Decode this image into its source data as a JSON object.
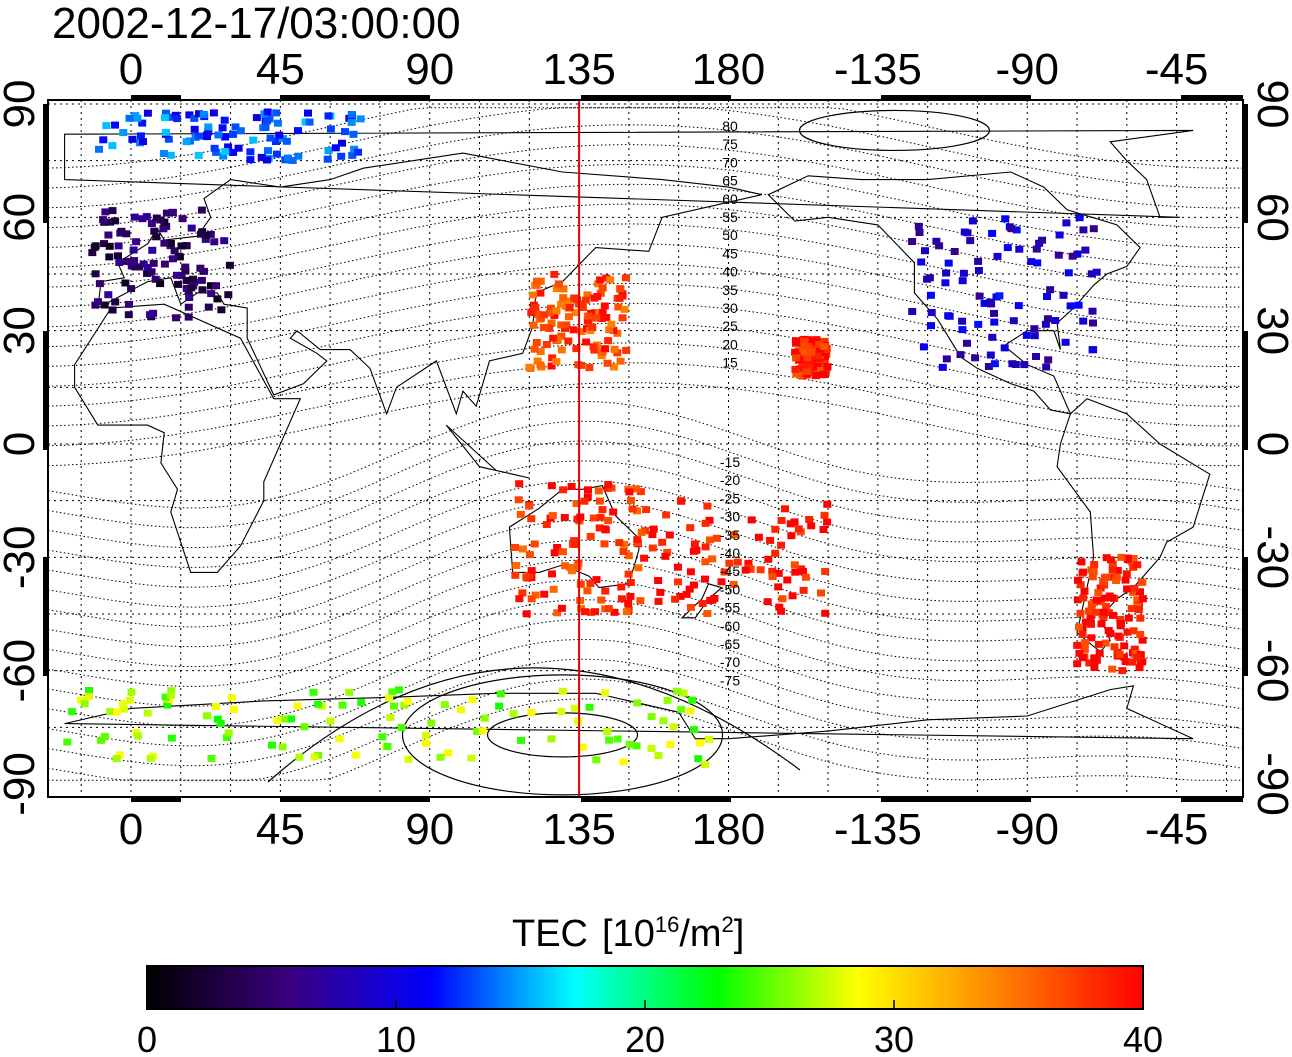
{
  "title": "2002-12-17/03:00:00",
  "map": {
    "lon_ticks": [
      "0",
      "45",
      "90",
      "135",
      "180",
      "-135",
      "-90",
      "-45"
    ],
    "lat_ticks_left": [
      "90",
      "60",
      "30",
      "0",
      "-30",
      "-60",
      "-90"
    ],
    "lat_ticks_right": [
      "90",
      "60",
      "30",
      "0",
      "-30",
      "-60",
      "-90"
    ],
    "meridian_line_lon": 135,
    "meridian_line_color": "#dd0000",
    "contour_labels_north": [
      "80",
      "75",
      "70",
      "65",
      "60",
      "55",
      "50",
      "45",
      "40",
      "35",
      "30",
      "25",
      "20",
      "15"
    ],
    "contour_labels_south": [
      "-15",
      "-20",
      "-25",
      "-30",
      "-35",
      "-40",
      "-45",
      "-50",
      "-55",
      "-60",
      "-65",
      "-70",
      "-75"
    ]
  },
  "colorbar": {
    "label": "TEC",
    "unit_base": "[10",
    "unit_exp": "16",
    "unit_mid": "/m",
    "unit_exp2": "2",
    "unit_close": "]",
    "ticks": [
      "0",
      "10",
      "20",
      "30",
      "40"
    ],
    "min": 0,
    "max": 40,
    "stops": [
      "#000000",
      "#3a0080",
      "#0000ff",
      "#00ffff",
      "#00ff00",
      "#ffff00",
      "#ff8000",
      "#ff0000"
    ]
  },
  "regions": [
    {
      "name": "europe",
      "lon": [
        -12,
        30
      ],
      "lat": [
        33,
        62
      ],
      "tec": 4
    },
    {
      "name": "north-america",
      "lon": [
        -125,
        -68
      ],
      "lat": [
        20,
        60
      ],
      "tec": 9
    },
    {
      "name": "japan-east-asia",
      "lon": [
        120,
        150
      ],
      "lat": [
        20,
        45
      ],
      "tec": 37
    },
    {
      "name": "pacific-north",
      "lon": [
        -160,
        -150
      ],
      "lat": [
        18,
        28
      ],
      "tec": 39
    },
    {
      "name": "pacific-south",
      "lon": [
        155,
        -150
      ],
      "lat": [
        -45,
        -15
      ],
      "tec": 39
    },
    {
      "name": "australia",
      "lon": [
        115,
        155
      ],
      "lat": [
        -45,
        -10
      ],
      "tec": 38
    },
    {
      "name": "south-america-south",
      "lon": [
        -75,
        -55
      ],
      "lat": [
        -60,
        -30
      ],
      "tec": 39
    },
    {
      "name": "antarctic",
      "lon": [
        -20,
        175
      ],
      "lat": [
        -85,
        -65
      ],
      "tec": 26
    },
    {
      "name": "arctic",
      "lon": [
        -10,
        70
      ],
      "lat": [
        75,
        88
      ],
      "tec": 13
    }
  ]
}
